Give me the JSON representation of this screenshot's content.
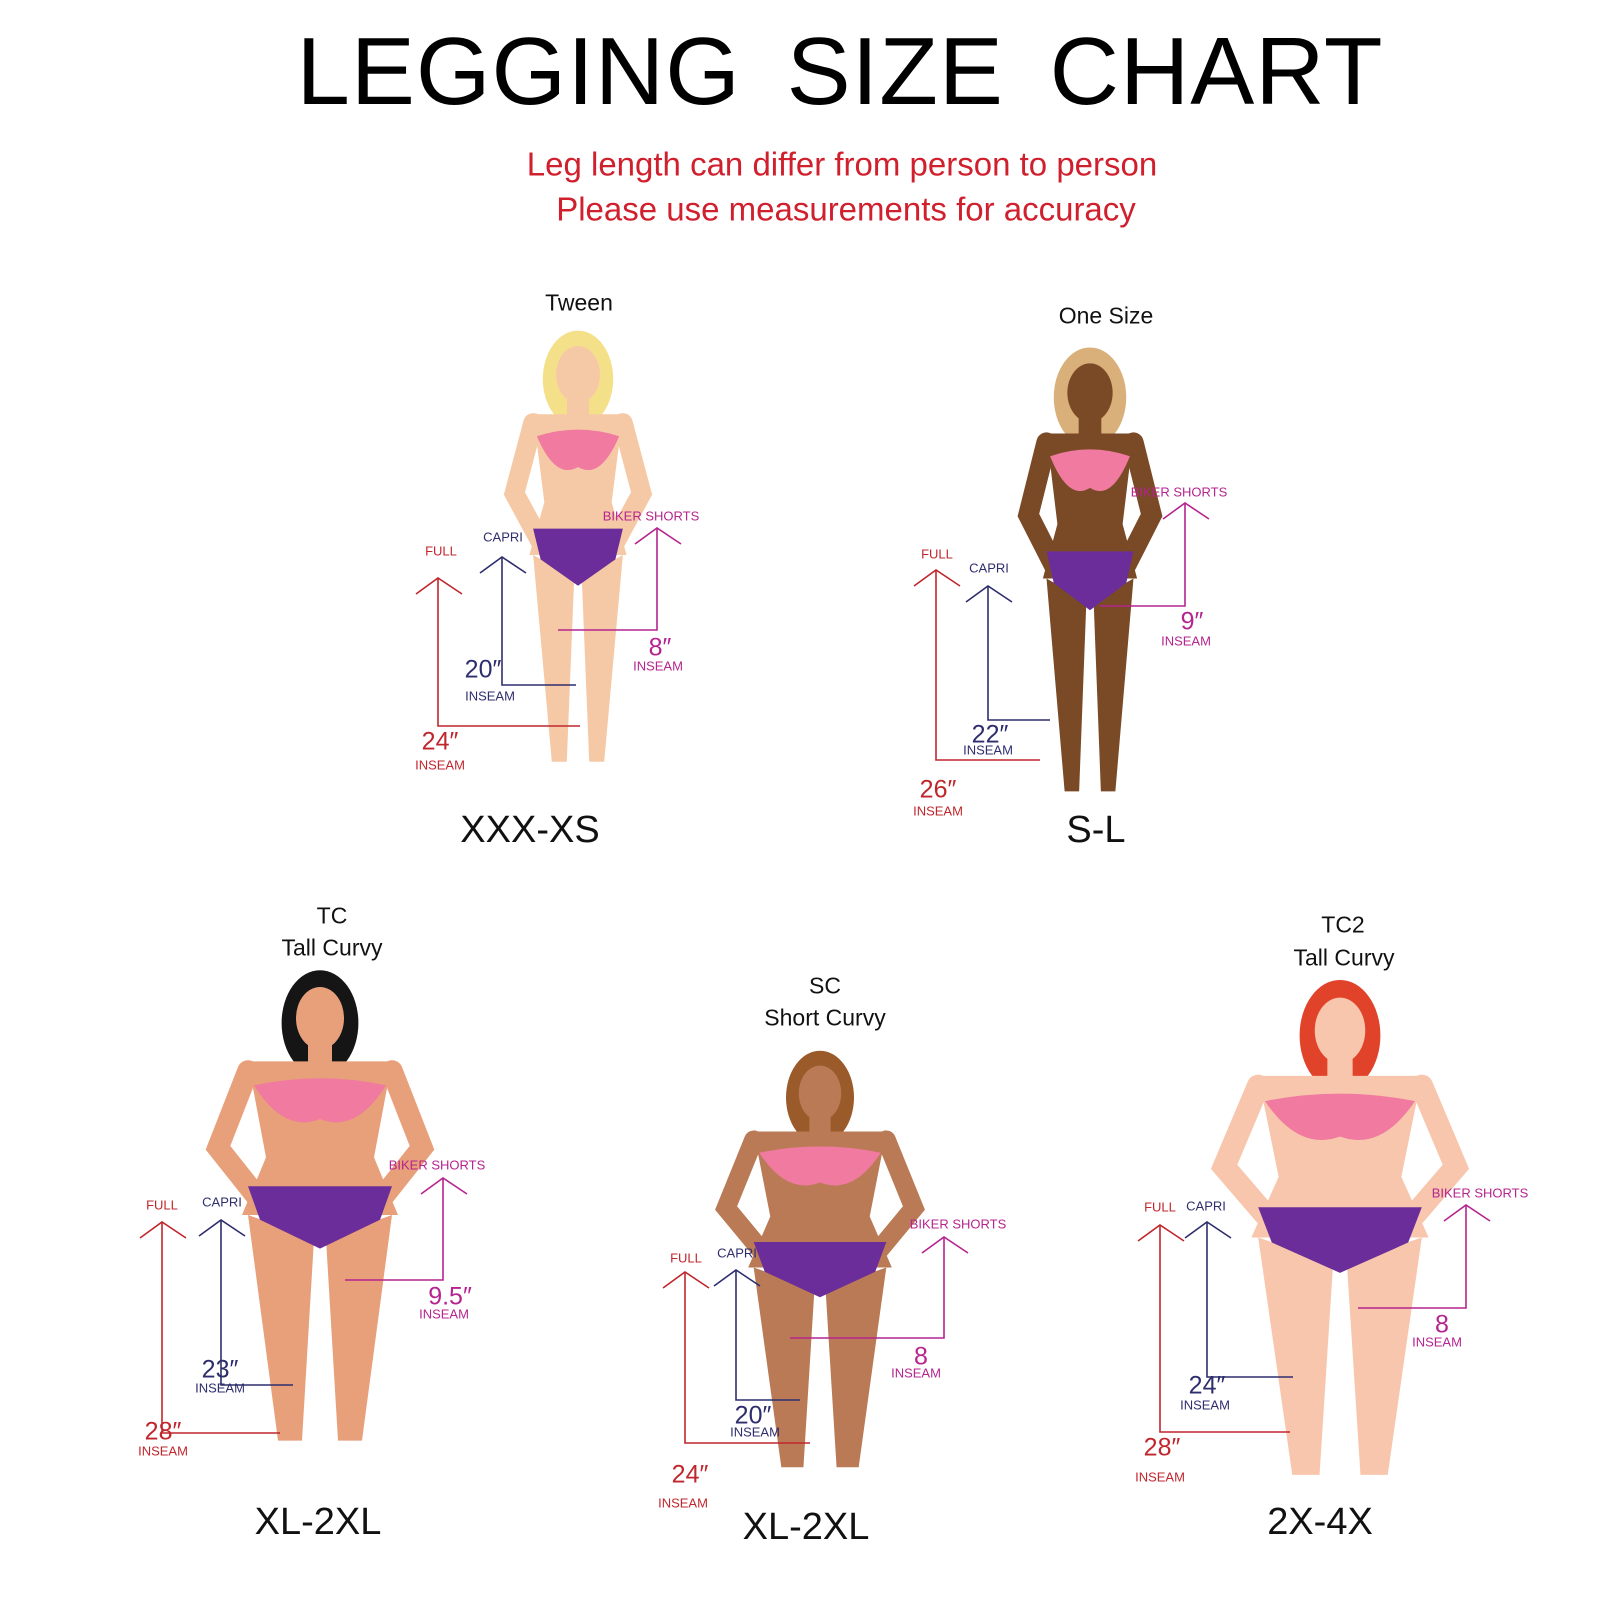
{
  "title": "LEGGING  SIZE CHART",
  "subtitle": [
    "Leg length can differ from person to person",
    "Please use measurements for accuracy"
  ],
  "colors": {
    "full": "#c0272d",
    "capri": "#2e2e6e",
    "biker": "#b5248f",
    "bra": "#f07aa0",
    "briefs": "#6a2d9a",
    "subtitle": "#d0202e"
  },
  "labels": {
    "full": "FULL",
    "capri": "CAPRI",
    "biker": "BIKER SHORTS",
    "inseam": "INSEAM"
  },
  "panels": [
    {
      "category": [
        "Tween"
      ],
      "size": "XXX-XS",
      "full": "24″",
      "capri": "20″",
      "biker": "8″",
      "skin": "#f6c9a6",
      "hair": "#f5e08a"
    },
    {
      "category": [
        "One Size"
      ],
      "size": "S-L",
      "full": "26″",
      "capri": "22″",
      "biker": "9″",
      "skin": "#7a4a26",
      "hair": "#d9b07a"
    },
    {
      "category": [
        "TC",
        "Tall Curvy"
      ],
      "size": "XL-2XL",
      "full": "28″",
      "capri": "23″",
      "biker": "9.5″",
      "skin": "#e8a07a",
      "hair": "#151515"
    },
    {
      "category": [
        "SC",
        "Short Curvy"
      ],
      "size": "XL-2XL",
      "full": "24″",
      "capri": "20″",
      "biker": "8",
      "skin": "#b97a55",
      "hair": "#9a5a2a"
    },
    {
      "category": [
        "TC2",
        "Tall Curvy"
      ],
      "size": "2X-4X",
      "full": "28″",
      "capri": "24″",
      "biker": "8",
      "skin": "#f8c6ad",
      "hair": "#e0432a"
    }
  ]
}
